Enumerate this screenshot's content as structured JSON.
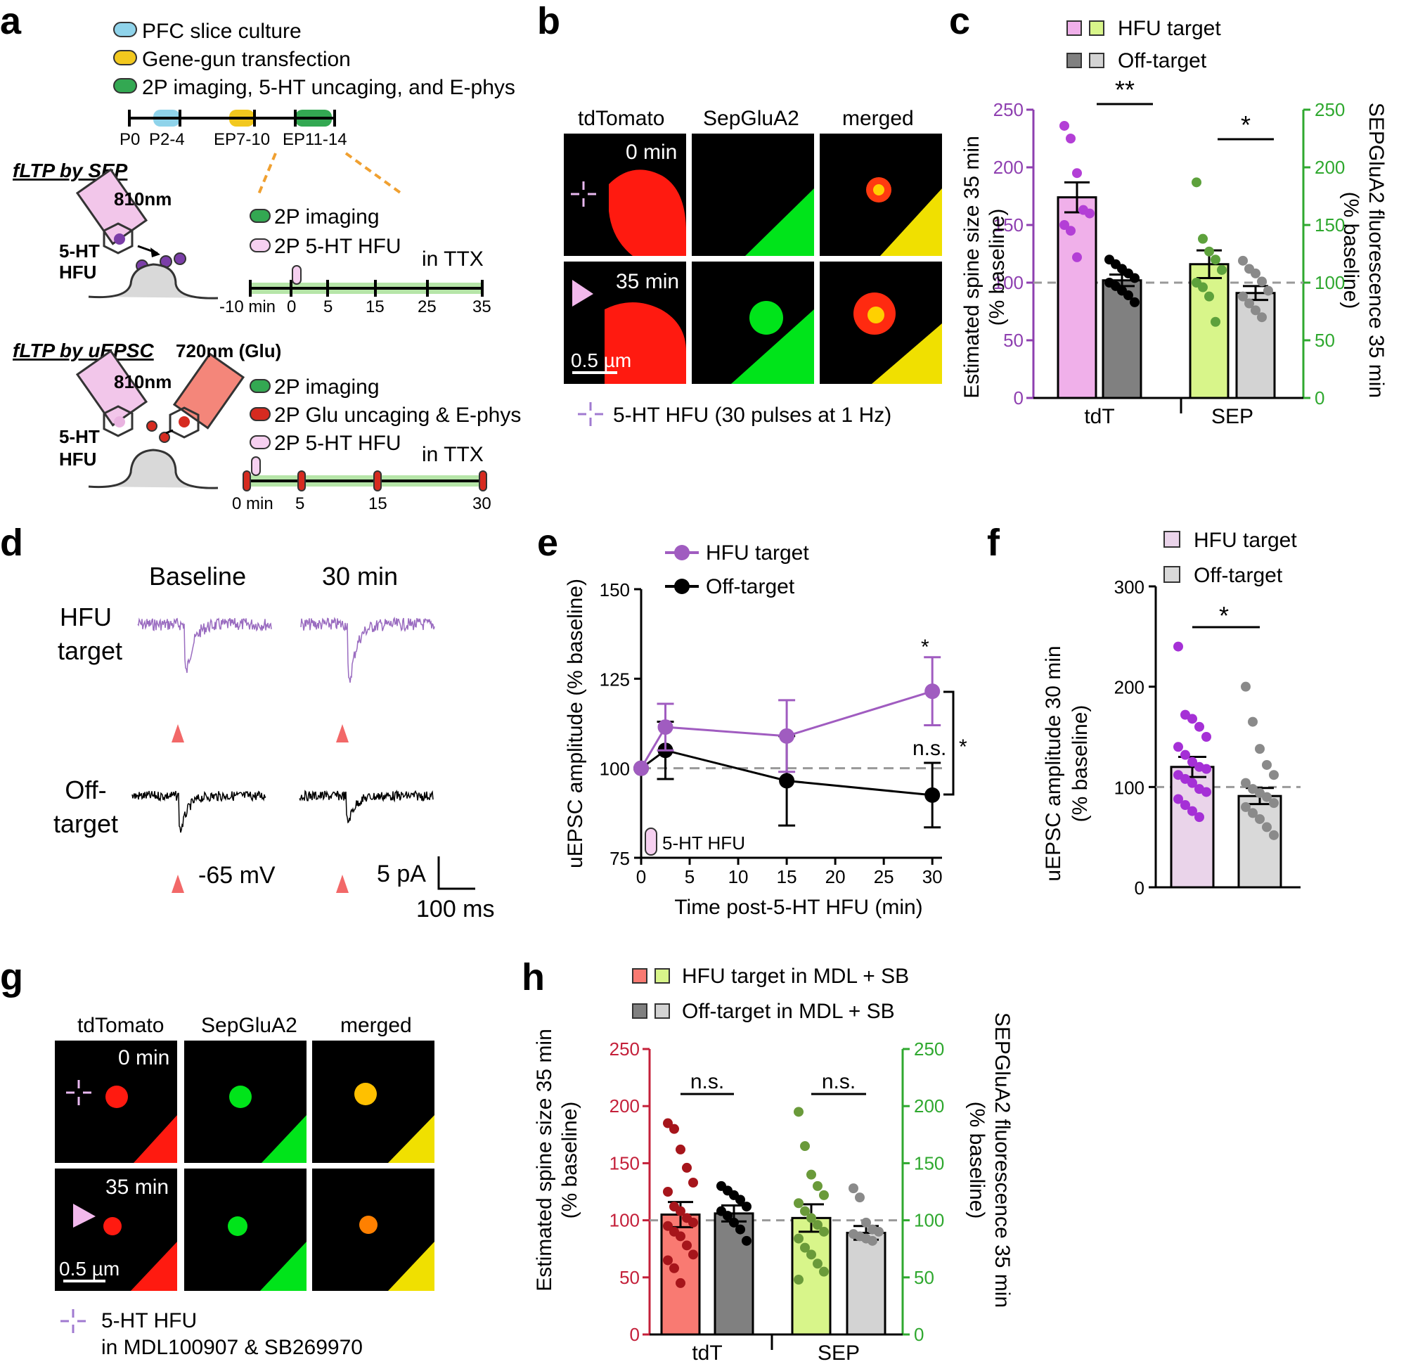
{
  "panels": {
    "a": {
      "label": "a",
      "legend": [
        "PFC slice culture",
        "Gene-gun transfection",
        "2P imaging, 5-HT uncaging, and E-phys"
      ],
      "legend_colors": [
        "#8fd3ea",
        "#f2c81e",
        "#33a852"
      ],
      "timeline_labels": [
        "P0",
        "P2-4",
        "EP7-10",
        "EP11-14"
      ],
      "sep_title": "fLTP by SEP",
      "laser1": "810nm",
      "hfu": [
        "5-HT",
        "HFU"
      ],
      "sep_legend": [
        "2P imaging",
        "2P 5-HT HFU"
      ],
      "ttx": "in TTX",
      "sep_ticks": [
        "-10 min",
        "0",
        "5",
        "15",
        "25",
        "35"
      ],
      "uepsc_title": "fLTP by uEPSC",
      "laser2": "720nm (Glu)",
      "uepsc_legend": [
        "2P imaging",
        "2P Glu uncaging & E-phys",
        "2P 5-HT HFU"
      ],
      "uepsc_ticks": [
        "0 min",
        "5",
        "15",
        "30"
      ]
    },
    "b": {
      "label": "b",
      "columns": [
        "tdTomato",
        "SepGluA2",
        "merged"
      ],
      "times": [
        "0 min",
        "35 min"
      ],
      "scale": "0.5 µm",
      "legend": "5-HT HFU (30 pulses at 1 Hz)"
    },
    "c": {
      "label": "c",
      "legend": [
        "HFU target",
        "Off-target"
      ],
      "ylabel_left": [
        "Estimated spine size 35 min",
        "(% baseline)"
      ],
      "ylabel_right": [
        "SEPGluA2 fluorescence 35 min",
        "(% baseline)"
      ],
      "sig": [
        "**",
        "*"
      ]
    },
    "d": {
      "label": "d",
      "columns": [
        "Baseline",
        "30 min"
      ],
      "rows": [
        [
          "HFU",
          "target"
        ],
        [
          "Off-",
          "target"
        ]
      ],
      "vm": "-65 mV",
      "scale_y": "5 pA",
      "scale_x": "100 ms",
      "trace_colors": [
        "#9a6cc0",
        "#000000"
      ]
    },
    "e": {
      "label": "e",
      "legend": [
        "HFU target",
        "Off-target"
      ],
      "hfu_label": "5-HT HFU",
      "sig": [
        "*",
        "n.s.",
        "*"
      ]
    },
    "f": {
      "label": "f",
      "legend": [
        "HFU target",
        "Off-target"
      ],
      "sig": "*"
    },
    "g": {
      "label": "g",
      "columns": [
        "tdTomato",
        "SepGluA2",
        "merged"
      ],
      "times": [
        "0 min",
        "35 min"
      ],
      "scale": "0.5 µm",
      "legend": [
        "5-HT HFU",
        "in MDL100907 & SB269970"
      ]
    },
    "h": {
      "label": "h",
      "legend": [
        "HFU target in MDL + SB",
        "Off-target in MDL + SB"
      ],
      "ylabel_left": [
        "Estimated spine size 35 min",
        "(% baseline)"
      ],
      "ylabel_right": [
        "SEPGluA2 fluorescence 35 min",
        "(% baseline)"
      ],
      "sig": [
        "n.s.",
        "n.s."
      ]
    }
  },
  "chart_data": [
    {
      "id": "c",
      "type": "bar",
      "categories": [
        "tdT",
        "SEP"
      ],
      "ylim": [
        0,
        250
      ],
      "yticks": [
        0,
        50,
        100,
        150,
        200,
        250
      ],
      "left_axis_color": "#8e3fb0",
      "right_axis_color": "#2fa82f",
      "series": [
        {
          "name": "HFU target",
          "group": "tdT",
          "mean": 174,
          "sem": 13,
          "color": "#f0b0ea",
          "dot": "#b33fd6",
          "points": [
            236,
            225,
            195,
            163,
            160,
            150,
            145,
            122
          ]
        },
        {
          "name": "Off-target",
          "group": "tdT",
          "mean": 102,
          "sem": 5,
          "color": "#808080",
          "dot": "#000000",
          "points": [
            120,
            116,
            112,
            108,
            104,
            100,
            97,
            93,
            89,
            83
          ]
        },
        {
          "name": "HFU target",
          "group": "SEP",
          "mean": 116,
          "sem": 12,
          "color": "#d8f58a",
          "dot": "#5da13c",
          "points": [
            187,
            138,
            127,
            120,
            111,
            100,
            96,
            88,
            66
          ]
        },
        {
          "name": "Off-target",
          "group": "SEP",
          "mean": 91,
          "sem": 6,
          "color": "#d3d3d3",
          "dot": "#8a8a8a",
          "points": [
            119,
            112,
            108,
            101,
            93,
            88,
            82,
            76,
            70
          ]
        }
      ]
    },
    {
      "id": "e",
      "type": "line",
      "xlabel": "Time post-5-HT HFU (min)",
      "ylabel": "uEPSC amplitude (% baseline)",
      "xlim": [
        0,
        31
      ],
      "ylim": [
        75,
        150
      ],
      "xticks": [
        0,
        5,
        10,
        15,
        20,
        25,
        30
      ],
      "yticks": [
        75,
        100,
        125,
        150
      ],
      "x": [
        0,
        2.5,
        15,
        30
      ],
      "series": [
        {
          "name": "HFU target",
          "color": "#a05cc0",
          "values": [
            100,
            111.5,
            109,
            121.5
          ],
          "err": [
            0,
            6.5,
            10,
            9.5
          ]
        },
        {
          "name": "Off-target",
          "color": "#000000",
          "values": [
            100,
            105,
            96.5,
            92.5
          ],
          "err": [
            0,
            8,
            12.5,
            9
          ]
        }
      ]
    },
    {
      "id": "f",
      "type": "bar",
      "ylabel": "uEPSC amplitude 30 min (% baseline)",
      "ylim": [
        0,
        300
      ],
      "yticks": [
        0,
        100,
        200,
        300
      ],
      "series": [
        {
          "name": "HFU target",
          "mean": 120,
          "sem": 10,
          "color": "#ead4ea",
          "dot": "#a530d6",
          "points": [
            240,
            172,
            168,
            160,
            150,
            140,
            132,
            125,
            120,
            118,
            112,
            108,
            104,
            98,
            95,
            88,
            82,
            76,
            70
          ]
        },
        {
          "name": "Off-target",
          "mean": 91,
          "sem": 8,
          "color": "#d9d9d9",
          "dot": "#8a8a8a",
          "points": [
            200,
            165,
            138,
            122,
            112,
            104,
            98,
            94,
            90,
            84,
            80,
            74,
            68,
            60,
            52
          ]
        }
      ]
    },
    {
      "id": "h",
      "type": "bar",
      "categories": [
        "tdT",
        "SEP"
      ],
      "ylim": [
        0,
        250
      ],
      "yticks": [
        0,
        50,
        100,
        150,
        200,
        250
      ],
      "left_axis_color": "#c4203a",
      "right_axis_color": "#2fa82f",
      "series": [
        {
          "name": "HFU target in MDL + SB",
          "group": "tdT",
          "mean": 105,
          "sem": 11,
          "color": "#f97a72",
          "dot": "#a6151b",
          "points": [
            185,
            180,
            162,
            146,
            133,
            125,
            112,
            108,
            102,
            98,
            95,
            90,
            86,
            78,
            70,
            65,
            58,
            45
          ]
        },
        {
          "name": "Off-target in MDL + SB",
          "group": "tdT",
          "mean": 106,
          "sem": 7,
          "color": "#808080",
          "dot": "#000000",
          "points": [
            130,
            126,
            122,
            118,
            112,
            108,
            104,
            98,
            92,
            82
          ]
        },
        {
          "name": "HFU target in MDL + SB",
          "group": "SEP",
          "mean": 102,
          "sem": 12,
          "color": "#d8f58a",
          "dot": "#6a9a3a",
          "points": [
            195,
            165,
            140,
            130,
            122,
            115,
            108,
            102,
            96,
            90,
            84,
            76,
            70,
            62,
            55,
            48
          ]
        },
        {
          "name": "Off-target in MDL + SB",
          "group": "SEP",
          "mean": 89,
          "sem": 6,
          "color": "#d3d3d3",
          "dot": "#8a8a8a",
          "points": [
            128,
            120,
            98,
            92,
            90,
            88,
            86,
            84,
            82
          ]
        }
      ]
    }
  ]
}
